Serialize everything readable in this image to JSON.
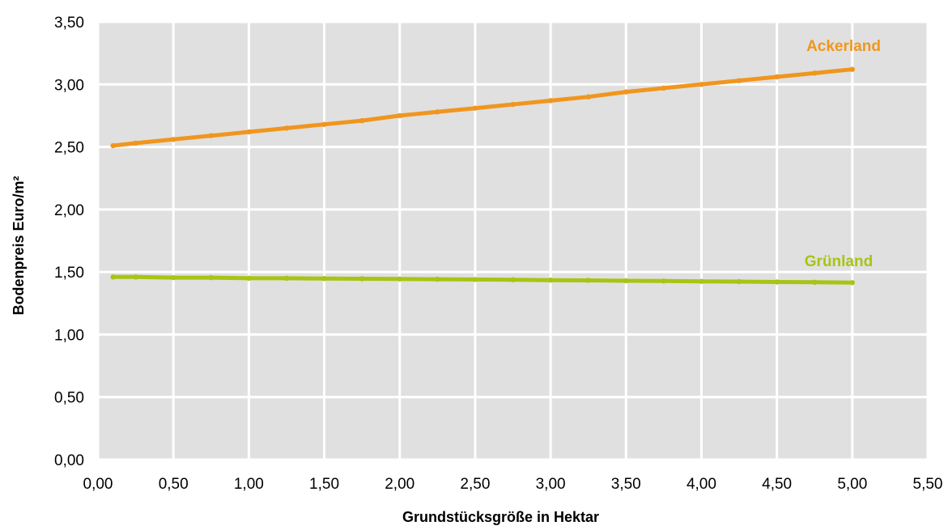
{
  "chart_data": {
    "type": "line",
    "title": "",
    "xlabel": "Grundstücksgröße in Hektar",
    "ylabel": "Bodenpreis Euro/m²",
    "xlim": [
      0,
      5.5
    ],
    "ylim": [
      0,
      3.5
    ],
    "x_ticks": [
      "0,00",
      "0,50",
      "1,00",
      "1,50",
      "2,00",
      "2,50",
      "3,00",
      "3,50",
      "4,00",
      "4,50",
      "5,00",
      "5,50"
    ],
    "y_ticks": [
      "0,00",
      "0,50",
      "1,00",
      "1,50",
      "2,00",
      "2,50",
      "3,00",
      "3,50"
    ],
    "grid": true,
    "legend": "none",
    "series": [
      {
        "name": "Ackerland",
        "color": "#f0961e",
        "x": [
          0.1,
          0.25,
          0.5,
          0.75,
          1.0,
          1.25,
          1.5,
          1.75,
          2.0,
          2.25,
          2.5,
          2.75,
          3.0,
          3.25,
          3.5,
          3.75,
          4.0,
          4.25,
          4.5,
          4.75,
          5.0
        ],
        "y": [
          2.51,
          2.53,
          2.56,
          2.59,
          2.62,
          2.65,
          2.68,
          2.71,
          2.75,
          2.78,
          2.81,
          2.84,
          2.87,
          2.9,
          2.94,
          2.97,
          3.0,
          3.03,
          3.06,
          3.09,
          3.12
        ]
      },
      {
        "name": "Grünland",
        "color": "#a8c414",
        "x": [
          0.1,
          0.25,
          0.5,
          0.75,
          1.0,
          1.25,
          1.5,
          1.75,
          2.0,
          2.25,
          2.5,
          2.75,
          3.0,
          3.25,
          3.5,
          3.75,
          4.0,
          4.25,
          4.5,
          4.75,
          5.0
        ],
        "y": [
          1.46,
          1.46,
          1.455,
          1.455,
          1.45,
          1.45,
          1.448,
          1.446,
          1.444,
          1.442,
          1.44,
          1.438,
          1.435,
          1.433,
          1.43,
          1.428,
          1.425,
          1.423,
          1.42,
          1.418,
          1.415
        ]
      }
    ]
  },
  "colors": {
    "plot_background": "#e0e0e0",
    "grid": "#ffffff"
  }
}
